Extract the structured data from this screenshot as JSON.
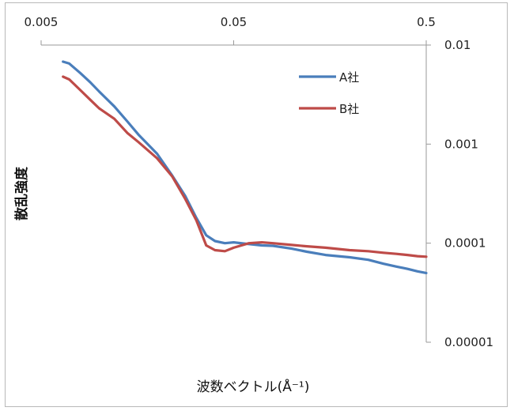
{
  "chart_data": {
    "type": "line",
    "xlabel": "波数ベクトル(Å⁻¹)",
    "ylabel": "散乱強度",
    "x_scale": "log",
    "y_scale": "log",
    "xlim": [
      0.005,
      0.5
    ],
    "ylim": [
      1e-05,
      0.01
    ],
    "x_ticks": [
      "0.005",
      "0.05",
      "0.5"
    ],
    "y_ticks": [
      "0.01",
      "0.001",
      "0.0001",
      "0.00001"
    ],
    "x_axis_position": "top",
    "y_axis_position": "right",
    "grid": false,
    "legend_position": "top-right",
    "series": [
      {
        "name": "A社",
        "color": "#4a7ebb",
        "x": [
          0.0065,
          0.007,
          0.008,
          0.009,
          0.01,
          0.012,
          0.014,
          0.016,
          0.02,
          0.024,
          0.028,
          0.032,
          0.036,
          0.04,
          0.045,
          0.05,
          0.06,
          0.07,
          0.08,
          0.1,
          0.12,
          0.15,
          0.2,
          0.25,
          0.3,
          0.35,
          0.4,
          0.45,
          0.5
        ],
        "y": [
          0.0068,
          0.0065,
          0.0052,
          0.0042,
          0.0034,
          0.0024,
          0.0017,
          0.00125,
          0.0008,
          0.00048,
          0.0003,
          0.00018,
          0.00012,
          0.000105,
          0.0001,
          0.000102,
          9.8e-05,
          9.5e-05,
          9.4e-05,
          8.8e-05,
          8.2e-05,
          7.6e-05,
          7.2e-05,
          6.8e-05,
          6.2e-05,
          5.8e-05,
          5.5e-05,
          5.2e-05,
          5e-05
        ]
      },
      {
        "name": "B社",
        "color": "#be4b48",
        "x": [
          0.0065,
          0.007,
          0.008,
          0.009,
          0.01,
          0.012,
          0.014,
          0.016,
          0.02,
          0.024,
          0.028,
          0.032,
          0.036,
          0.04,
          0.045,
          0.05,
          0.06,
          0.07,
          0.08,
          0.1,
          0.12,
          0.15,
          0.2,
          0.25,
          0.3,
          0.35,
          0.4,
          0.45,
          0.5
        ],
        "y": [
          0.0048,
          0.0045,
          0.0035,
          0.0028,
          0.0023,
          0.0018,
          0.0013,
          0.00105,
          0.00072,
          0.00047,
          0.00028,
          0.00017,
          9.5e-05,
          8.5e-05,
          8.3e-05,
          9e-05,
          0.0001,
          0.000102,
          0.0001,
          9.6e-05,
          9.3e-05,
          9e-05,
          8.5e-05,
          8.3e-05,
          8e-05,
          7.8e-05,
          7.6e-05,
          7.4e-05,
          7.3e-05
        ]
      }
    ]
  }
}
